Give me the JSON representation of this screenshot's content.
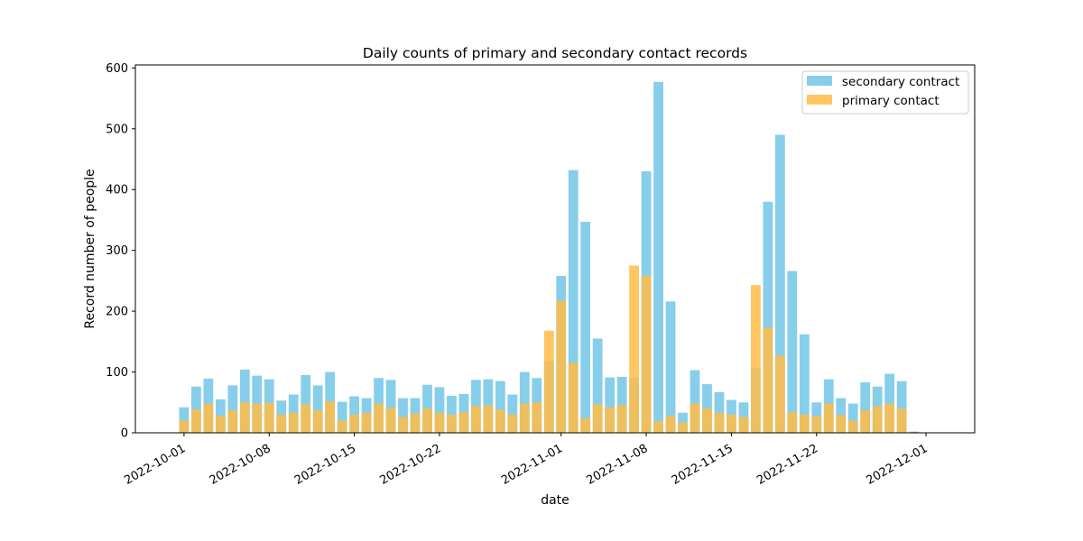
{
  "chart_data": {
    "type": "bar",
    "title": "Daily counts of primary and secondary contact records",
    "xlabel": "date",
    "ylabel": "Record number of people",
    "start_date": "2022-10-01",
    "xlim": [
      "2022-09-27",
      "2022-12-05"
    ],
    "ylim": [
      0,
      605
    ],
    "x_ticks": [
      "2022-10-01",
      "2022-10-08",
      "2022-10-15",
      "2022-10-22",
      "2022-11-01",
      "2022-11-08",
      "2022-11-15",
      "2022-11-22",
      "2022-12-01"
    ],
    "y_ticks": [
      0,
      100,
      200,
      300,
      400,
      500,
      600
    ],
    "grid": false,
    "legend_position": "top-right",
    "series": [
      {
        "name": "secondary contract",
        "color": "#87CEEB",
        "values": [
          42,
          76,
          89,
          55,
          78,
          104,
          94,
          88,
          53,
          63,
          95,
          78,
          100,
          51,
          60,
          57,
          90,
          87,
          57,
          57,
          79,
          75,
          61,
          64,
          87,
          88,
          85,
          63,
          100,
          90,
          118,
          258,
          432,
          347,
          155,
          91,
          92,
          90,
          430,
          577,
          216,
          33,
          103,
          80,
          67,
          54,
          50,
          107,
          380,
          490,
          266,
          162,
          50,
          88,
          57,
          48,
          83,
          76,
          97,
          85,
          2
        ]
      },
      {
        "name": "primary contact",
        "color": "#FFBC47",
        "values": [
          20,
          38,
          48,
          28,
          37,
          50,
          48,
          49,
          30,
          33,
          47,
          37,
          52,
          20,
          30,
          33,
          48,
          41,
          26,
          32,
          40,
          33,
          30,
          34,
          44,
          45,
          38,
          30,
          48,
          50,
          168,
          217,
          115,
          24,
          47,
          42,
          46,
          275,
          258,
          19,
          27,
          17,
          48,
          40,
          33,
          30,
          26,
          243,
          173,
          127,
          34,
          30,
          27,
          48,
          29,
          20,
          37,
          44,
          48,
          40,
          1
        ]
      }
    ]
  }
}
